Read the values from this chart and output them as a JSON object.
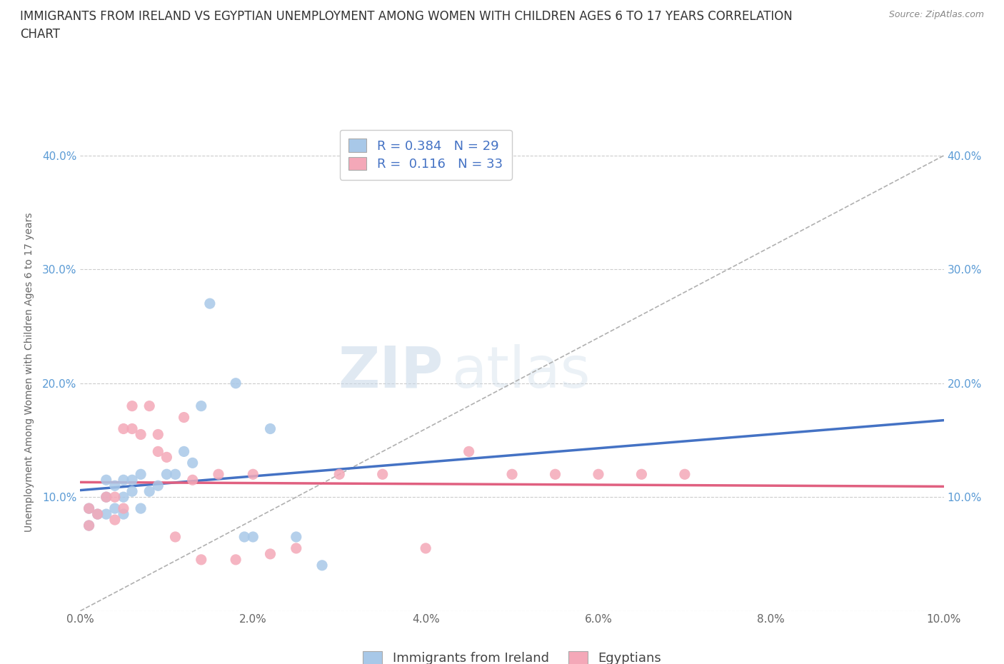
{
  "title_line1": "IMMIGRANTS FROM IRELAND VS EGYPTIAN UNEMPLOYMENT AMONG WOMEN WITH CHILDREN AGES 6 TO 17 YEARS CORRELATION",
  "title_line2": "CHART",
  "source": "Source: ZipAtlas.com",
  "xlabel": "",
  "ylabel": "Unemployment Among Women with Children Ages 6 to 17 years",
  "xlim": [
    0.0,
    0.1
  ],
  "ylim": [
    0.0,
    0.42
  ],
  "xticks": [
    0.0,
    0.02,
    0.04,
    0.06,
    0.08,
    0.1
  ],
  "xticklabels": [
    "0.0%",
    "2.0%",
    "4.0%",
    "6.0%",
    "8.0%",
    "10.0%"
  ],
  "yticks": [
    0.0,
    0.1,
    0.2,
    0.3,
    0.4
  ],
  "yticklabels": [
    "",
    "10.0%",
    "20.0%",
    "30.0%",
    "40.0%"
  ],
  "grid_color": "#cccccc",
  "grid_style": "--",
  "watermark_zip": "ZIP",
  "watermark_atlas": "atlas",
  "ireland_color": "#a8c8e8",
  "egypt_color": "#f4a8b8",
  "ireland_line_color": "#4472c4",
  "egypt_line_color": "#e06080",
  "trend_line_color": "#b0b0b0",
  "R_ireland": 0.384,
  "N_ireland": 29,
  "R_egypt": 0.116,
  "N_egypt": 33,
  "ireland_x": [
    0.001,
    0.001,
    0.002,
    0.003,
    0.003,
    0.003,
    0.004,
    0.004,
    0.005,
    0.005,
    0.005,
    0.006,
    0.006,
    0.007,
    0.007,
    0.008,
    0.009,
    0.01,
    0.011,
    0.012,
    0.013,
    0.014,
    0.015,
    0.018,
    0.019,
    0.02,
    0.022,
    0.025,
    0.028
  ],
  "ireland_y": [
    0.09,
    0.075,
    0.085,
    0.085,
    0.1,
    0.115,
    0.09,
    0.11,
    0.085,
    0.1,
    0.115,
    0.105,
    0.115,
    0.09,
    0.12,
    0.105,
    0.11,
    0.12,
    0.12,
    0.14,
    0.13,
    0.18,
    0.27,
    0.2,
    0.065,
    0.065,
    0.16,
    0.065,
    0.04
  ],
  "egypt_x": [
    0.001,
    0.001,
    0.002,
    0.003,
    0.004,
    0.004,
    0.005,
    0.005,
    0.006,
    0.006,
    0.007,
    0.008,
    0.009,
    0.009,
    0.01,
    0.011,
    0.012,
    0.013,
    0.014,
    0.016,
    0.018,
    0.02,
    0.022,
    0.025,
    0.03,
    0.035,
    0.04,
    0.045,
    0.05,
    0.055,
    0.06,
    0.065,
    0.07
  ],
  "egypt_y": [
    0.09,
    0.075,
    0.085,
    0.1,
    0.08,
    0.1,
    0.09,
    0.16,
    0.16,
    0.18,
    0.155,
    0.18,
    0.14,
    0.155,
    0.135,
    0.065,
    0.17,
    0.115,
    0.045,
    0.12,
    0.045,
    0.12,
    0.05,
    0.055,
    0.12,
    0.12,
    0.055,
    0.14,
    0.12,
    0.12,
    0.12,
    0.12,
    0.12
  ],
  "background_color": "#ffffff",
  "title_fontsize": 12,
  "axis_fontsize": 10,
  "tick_fontsize": 11,
  "legend_fontsize": 13,
  "tick_color": "#5b9bd5",
  "bottom_legend_color": "#444444"
}
